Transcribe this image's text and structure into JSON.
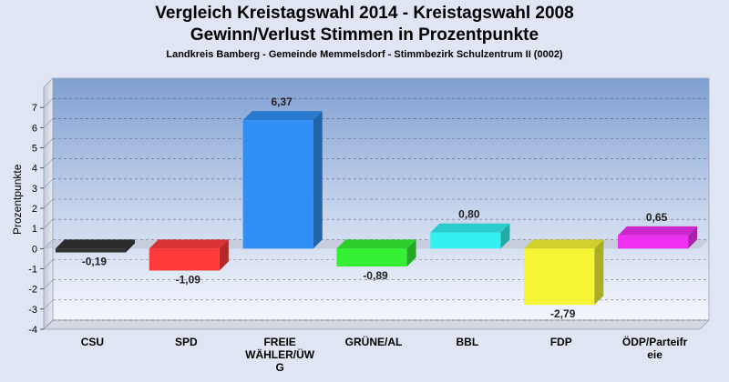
{
  "title": "Vergleich Kreistagswahl 2014 - Kreistagswahl 2008",
  "subtitle": "Gewinn/Verlust Stimmen in Prozentpunkte",
  "caption": "Landkreis Bamberg - Gemeinde Memmelsdorf - Stimmbezirk Schulzentrum II (0002)",
  "chart_data": {
    "type": "bar",
    "title": "Vergleich Kreistagswahl 2014 - Kreistagswahl 2008",
    "subtitle": "Gewinn/Verlust Stimmen in Prozentpunkte",
    "ylabel": "Prozentpunkte",
    "xlabel": "",
    "ylim": [
      -4,
      8
    ],
    "yticks": [
      -4,
      -3,
      -2,
      -1,
      0,
      1,
      2,
      3,
      4,
      5,
      6,
      7
    ],
    "grid": true,
    "legend": "none",
    "categories": [
      "CSU",
      "SPD",
      "FREIE WÄHLER/ÜWG",
      "GRÜNE/AL",
      "BBL",
      "FDP",
      "ÖDP/Parteifreie"
    ],
    "category_label_lines": [
      [
        "CSU"
      ],
      [
        "SPD"
      ],
      [
        "FREIE",
        "WÄHLER/ÜW",
        "G"
      ],
      [
        "GRÜNE/AL"
      ],
      [
        "BBL"
      ],
      [
        "FDP"
      ],
      [
        "ÖDP/Parteifr",
        "eie"
      ]
    ],
    "values": [
      -0.19,
      -1.09,
      6.37,
      -0.89,
      0.8,
      -2.79,
      0.65
    ],
    "value_labels": [
      "-0,19",
      "-1,09",
      "6,37",
      "-0,89",
      "0,80",
      "-2,79",
      "0,65"
    ],
    "colors": [
      "#333333",
      "#ff3b3b",
      "#2f8ff5",
      "#35f035",
      "#35f0f0",
      "#f5f535",
      "#f030f0"
    ]
  }
}
